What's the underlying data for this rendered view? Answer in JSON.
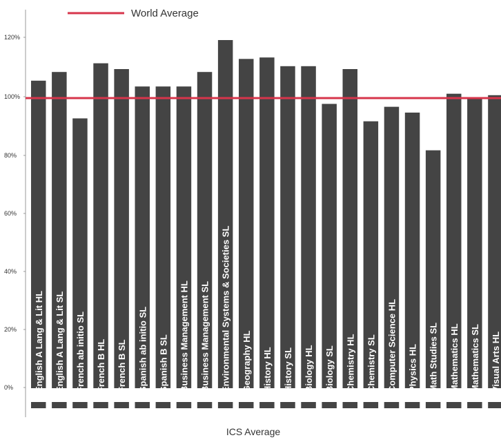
{
  "chart_data": {
    "type": "bar",
    "title": "",
    "xlabel": "ICS Average",
    "ylabel": "",
    "ylim": [
      0,
      120
    ],
    "yticks": [
      "0%",
      "20%",
      "40%",
      "60%",
      "80%",
      "100%",
      "120%"
    ],
    "legend": {
      "label": "World Average",
      "position": "top-left",
      "color": "#d7354b"
    },
    "reference_line": {
      "name": "World Average",
      "value": 100
    },
    "bar_color": "#444444",
    "grid": false,
    "categories": [
      "English A Lang & Lit HL",
      "English A Lang & Lit SL",
      "French ab initio SL",
      "French B HL",
      "French B SL",
      "Spanish ab initio SL",
      "Spanish B SL",
      "Business Management HL",
      "Business Management SL",
      "Environmental Systems & Societies SL",
      "Geography HL",
      "History HL",
      "History SL",
      "Biology HL",
      "Biology SL",
      "Chemistry HL",
      "Chemistry SL",
      "Computer Science HL",
      "Physics HL",
      "Math Studies SL",
      "Mathematics HL",
      "Mathematics SL",
      "Visual Arts HL"
    ],
    "values": [
      106,
      109,
      93,
      112,
      110,
      104,
      104,
      104,
      109,
      120,
      113.5,
      114,
      111,
      111,
      98,
      110,
      92,
      97,
      95,
      82,
      101.5,
      100,
      101
    ]
  }
}
